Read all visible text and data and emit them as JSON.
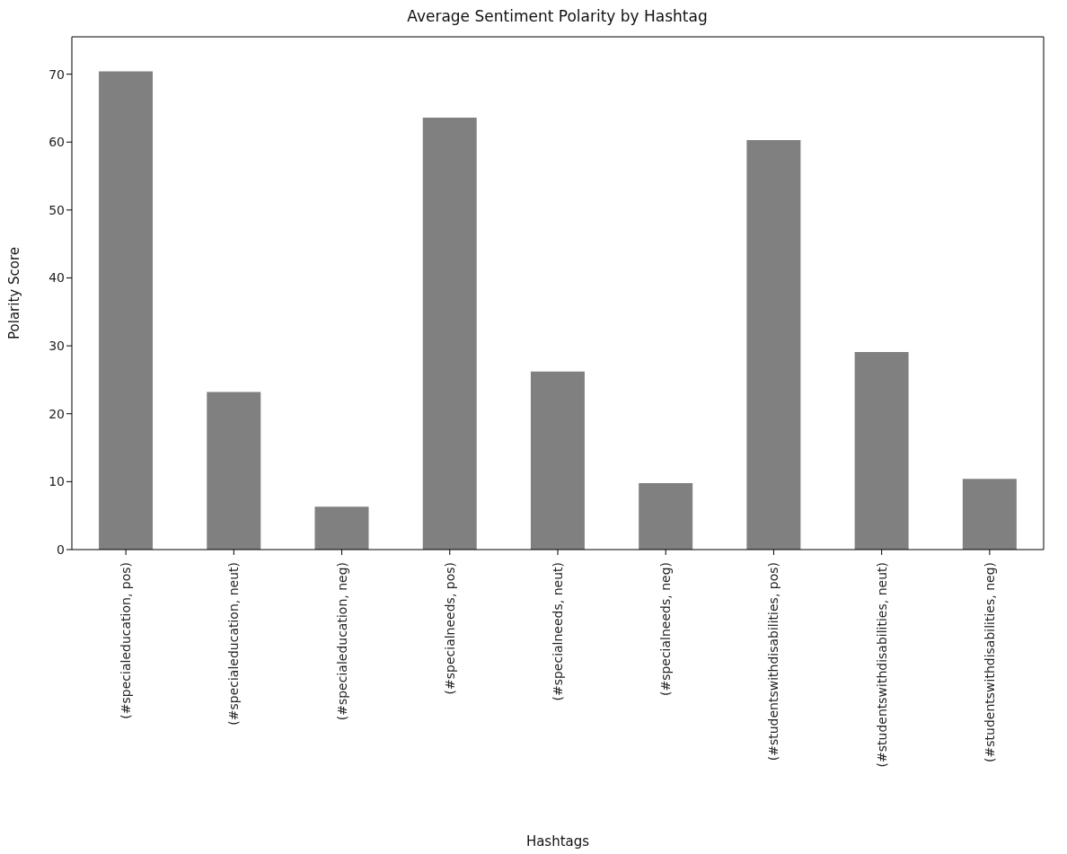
{
  "chart_data": {
    "type": "bar",
    "title": "Average Sentiment Polarity by Hashtag",
    "xlabel": "Hashtags",
    "ylabel": "Polarity Score",
    "categories": [
      "(#specialeducation, pos)",
      "(#specialeducation, neut)",
      "(#specialeducation, neg)",
      "(#specialneeds, pos)",
      "(#specialneeds, neut)",
      "(#specialneeds, neg)",
      "(#studentswithdisabilities, pos)",
      "(#studentswithdisabilities, neut)",
      "(#studentswithdisabilities, neg)"
    ],
    "values": [
      70.4,
      23.2,
      6.3,
      63.6,
      26.2,
      9.8,
      60.3,
      29.1,
      10.4
    ],
    "color": "#808080",
    "ylim": [
      0,
      75.5
    ],
    "yticks": [
      0,
      10,
      20,
      30,
      40,
      50,
      60,
      70
    ],
    "grid": false
  }
}
